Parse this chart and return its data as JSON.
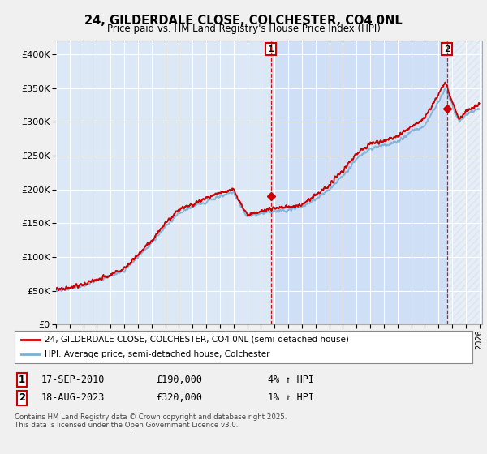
{
  "title": "24, GILDERDALE CLOSE, COLCHESTER, CO4 0NL",
  "subtitle": "Price paid vs. HM Land Registry's House Price Index (HPI)",
  "ylim": [
    0,
    420000
  ],
  "yticks": [
    0,
    50000,
    100000,
    150000,
    200000,
    250000,
    300000,
    350000,
    400000
  ],
  "ytick_labels": [
    "£0",
    "£50K",
    "£100K",
    "£150K",
    "£200K",
    "£250K",
    "£300K",
    "£350K",
    "£400K"
  ],
  "bg_color": "#f0f0f0",
  "plot_bg_color": "#dce8f5",
  "grid_color": "#ffffff",
  "red_line_color": "#cc0000",
  "blue_line_color": "#7bafd4",
  "purchase1_x": 2010.72,
  "purchase1_y": 190000,
  "purchase1_label": "1",
  "purchase2_x": 2023.63,
  "purchase2_y": 320000,
  "purchase2_label": "2",
  "highlight_color": "#ccddf5",
  "legend_line1": "24, GILDERDALE CLOSE, COLCHESTER, CO4 0NL (semi-detached house)",
  "legend_line2": "HPI: Average price, semi-detached house, Colchester",
  "table_row1": [
    "1",
    "17-SEP-2010",
    "£190,000",
    "4% ↑ HPI"
  ],
  "table_row2": [
    "2",
    "18-AUG-2023",
    "£320,000",
    "1% ↑ HPI"
  ],
  "footnote": "Contains HM Land Registry data © Crown copyright and database right 2025.\nThis data is licensed under the Open Government Licence v3.0.",
  "xlim_start": 1995.3,
  "xlim_end": 2026.2
}
